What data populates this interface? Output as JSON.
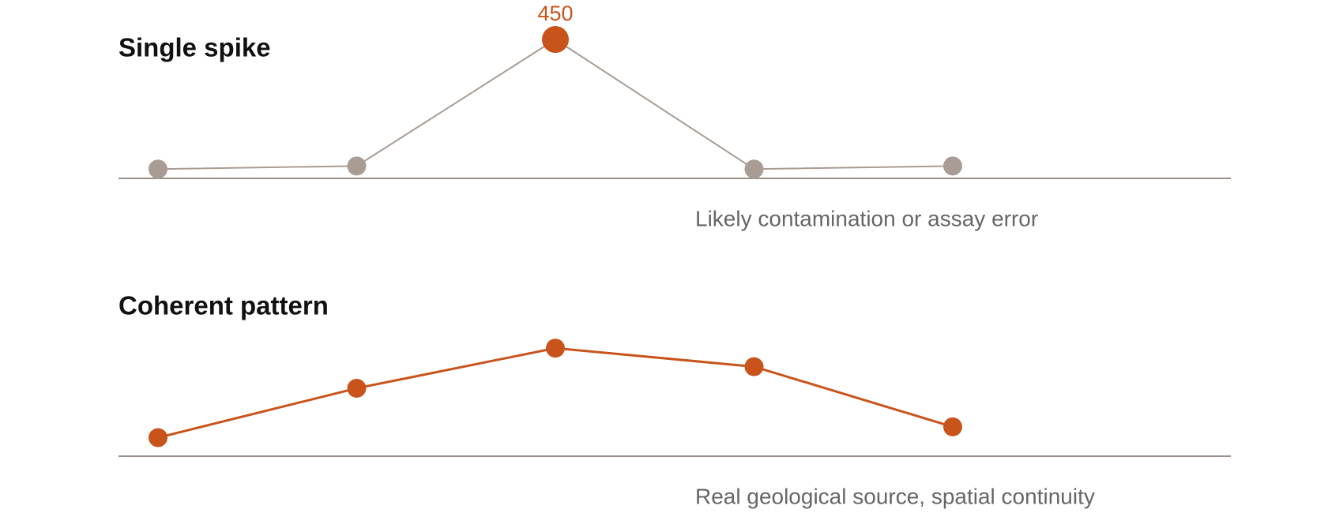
{
  "chart_data": [
    {
      "type": "line",
      "title": "Single spike",
      "annotation": "Likely contamination or assay error",
      "categories": [
        null,
        null,
        null,
        null,
        null
      ],
      "series": [
        {
          "color": "#a89c94",
          "point_colors": [
            "#a89c94",
            "#a89c94",
            "#c8541c",
            "#a89c94",
            "#a89c94"
          ],
          "values": [
            30,
            40,
            450,
            30,
            40
          ],
          "value_labels": [
            null,
            null,
            "450",
            null,
            null
          ]
        }
      ],
      "ylim": [
        0,
        450
      ]
    },
    {
      "type": "line",
      "title": "Coherent pattern",
      "annotation": "Real geological source, spatial continuity",
      "categories": [
        null,
        null,
        null,
        null,
        null
      ],
      "series": [
        {
          "color": "#c8541c",
          "point_colors": [
            "#c8541c",
            "#c8541c",
            "#c8541c",
            "#c8541c",
            "#c8541c"
          ],
          "values": [
            60,
            220,
            350,
            290,
            95
          ]
        }
      ],
      "ylim": [
        0,
        450
      ]
    }
  ]
}
